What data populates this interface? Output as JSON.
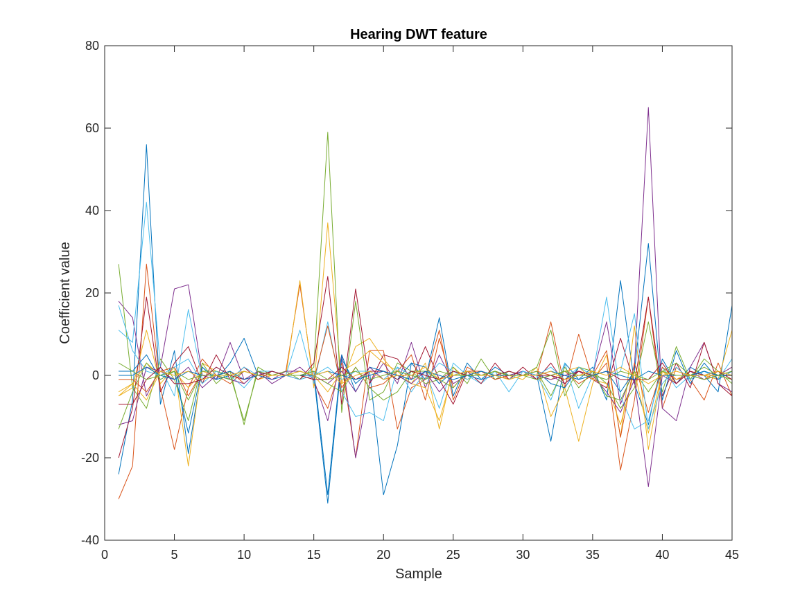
{
  "chart_data": {
    "type": "line",
    "title": "Hearing DWT feature",
    "xlabel": "Sample",
    "ylabel": "Coefficient value",
    "xlim": [
      0,
      45
    ],
    "ylim": [
      -40,
      80
    ],
    "xticks": [
      0,
      5,
      10,
      15,
      20,
      25,
      30,
      35,
      40,
      45
    ],
    "yticks": [
      -40,
      -20,
      0,
      20,
      40,
      60,
      80
    ],
    "xtick_labels": [
      "0",
      "5",
      "10",
      "15",
      "20",
      "25",
      "30",
      "35",
      "40",
      "45"
    ],
    "ytick_labels": [
      "-40",
      "-20",
      "0",
      "20",
      "40",
      "60",
      "80"
    ],
    "grid": false,
    "legend": "none",
    "x": [
      1,
      2,
      3,
      4,
      5,
      6,
      7,
      8,
      9,
      10,
      11,
      12,
      13,
      14,
      15,
      16,
      17,
      18,
      19,
      20,
      21,
      22,
      23,
      24,
      25,
      26,
      27,
      28,
      29,
      30,
      31,
      32,
      33,
      34,
      35,
      36,
      37,
      38,
      39,
      40,
      41,
      42,
      43,
      44,
      45
    ],
    "series": [
      {
        "color": "#0072BD",
        "values": [
          -24,
          -6,
          56,
          -7,
          6,
          -19,
          2,
          -1,
          3,
          9,
          0,
          1,
          0,
          1,
          0,
          -31,
          4,
          -2,
          1,
          -29,
          -17,
          3,
          -1,
          14,
          -5,
          3,
          -1,
          2,
          0,
          1,
          0,
          -16,
          3,
          -1,
          2,
          -6,
          23,
          -2,
          -12,
          4,
          -2,
          2,
          0,
          -4,
          17
        ]
      },
      {
        "color": "#D95319",
        "values": [
          -30,
          -22,
          27,
          -3,
          -18,
          -3,
          4,
          0,
          -2,
          1,
          0,
          0,
          1,
          22,
          -2,
          -8,
          3,
          -20,
          6,
          6,
          -13,
          -3,
          -1,
          11,
          -6,
          2,
          0,
          1,
          -1,
          1,
          0,
          13,
          -3,
          10,
          -1,
          3,
          -23,
          -6,
          19,
          -8,
          2,
          -1,
          -6,
          3,
          -5
        ]
      },
      {
        "color": "#EDB120",
        "values": [
          -5,
          -3,
          11,
          -2,
          2,
          -22,
          3,
          1,
          -1,
          2,
          -1,
          0,
          0,
          23,
          -3,
          37,
          -2,
          7,
          9,
          4,
          0,
          -2,
          3,
          -13,
          2,
          -1,
          1,
          0,
          0,
          -1,
          2,
          -10,
          -3,
          -16,
          -2,
          5,
          -15,
          12,
          -18,
          1,
          -2,
          1,
          0,
          -1,
          11
        ]
      },
      {
        "color": "#7E2F8E",
        "values": [
          18,
          14,
          -5,
          2,
          21,
          22,
          0,
          -1,
          8,
          -1,
          1,
          -2,
          0,
          2,
          -1,
          -11,
          5,
          -20,
          -2,
          3,
          -2,
          8,
          -3,
          5,
          -2,
          0,
          1,
          -1,
          0,
          1,
          -1,
          0,
          -2,
          1,
          0,
          13,
          -7,
          2,
          65,
          -8,
          -11,
          2,
          8,
          -2,
          -4
        ]
      },
      {
        "color": "#77AC30",
        "values": [
          27,
          -3,
          -8,
          4,
          -1,
          -11,
          3,
          -2,
          1,
          -12,
          2,
          0,
          1,
          -1,
          2,
          59,
          -9,
          18,
          -6,
          -4,
          3,
          1,
          -2,
          -1,
          2,
          -2,
          4,
          -1,
          1,
          0,
          2,
          11,
          -5,
          2,
          1,
          -2,
          -8,
          -3,
          13,
          -4,
          7,
          -1,
          4,
          1,
          -2
        ]
      },
      {
        "color": "#4DBEEE",
        "values": [
          11,
          8,
          42,
          2,
          -5,
          16,
          -1,
          2,
          0,
          -3,
          1,
          1,
          0,
          11,
          -2,
          13,
          -4,
          -10,
          -9,
          -11,
          2,
          -4,
          1,
          -8,
          3,
          0,
          -2,
          1,
          -4,
          1,
          0,
          -6,
          3,
          -8,
          0,
          19,
          -5,
          -13,
          -11,
          2,
          -3,
          0,
          1,
          -1,
          4
        ]
      },
      {
        "color": "#A2142F",
        "values": [
          -20,
          -8,
          19,
          -4,
          3,
          7,
          -2,
          5,
          -1,
          2,
          -1,
          1,
          0,
          -1,
          3,
          24,
          -7,
          21,
          -2,
          5,
          4,
          -1,
          7,
          -1,
          -7,
          1,
          -2,
          3,
          -1,
          2,
          -1,
          3,
          -2,
          1,
          -1,
          -3,
          9,
          -2,
          19,
          -5,
          3,
          -3,
          8,
          -2,
          -5
        ]
      },
      {
        "color": "#0072BD",
        "values": [
          1,
          1,
          5,
          -1,
          1,
          -14,
          2,
          -1,
          0,
          1,
          0,
          -1,
          0,
          0,
          1,
          -29,
          5,
          -4,
          2,
          1,
          -1,
          3,
          2,
          -2,
          1,
          0,
          -1,
          0,
          0,
          0,
          1,
          -2,
          -3,
          2,
          0,
          1,
          -4,
          1,
          32,
          -6,
          6,
          -2,
          3,
          -1,
          1
        ]
      },
      {
        "color": "#D95319",
        "values": [
          -1,
          -1,
          -4,
          1,
          2,
          -5,
          1,
          0,
          1,
          -2,
          1,
          0,
          0,
          0,
          -1,
          12,
          -3,
          2,
          -3,
          -2,
          1,
          5,
          -6,
          9,
          -3,
          1,
          1,
          -1,
          0,
          0,
          1,
          0,
          1,
          -2,
          0,
          6,
          -15,
          3,
          -9,
          2,
          -1,
          0,
          -1,
          1,
          -1
        ]
      },
      {
        "color": "#EDB120",
        "values": [
          -4,
          -2,
          3,
          0,
          1,
          -3,
          1,
          0,
          0,
          1,
          0,
          0,
          0,
          1,
          0,
          -4,
          1,
          3,
          6,
          3,
          1,
          -2,
          -3,
          -11,
          1,
          0,
          0,
          1,
          0,
          0,
          0,
          -1,
          1,
          2,
          -1,
          -2,
          -12,
          1,
          -14,
          1,
          -1,
          1,
          0,
          0,
          2
        ]
      },
      {
        "color": "#7E2F8E",
        "values": [
          -12,
          -11,
          2,
          1,
          -1,
          2,
          -3,
          0,
          -1,
          -2,
          1,
          -1,
          1,
          1,
          0,
          -2,
          1,
          -4,
          2,
          -1,
          0,
          -2,
          1,
          -4,
          0,
          1,
          0,
          0,
          0,
          0,
          0,
          -1,
          0,
          1,
          0,
          -4,
          -9,
          -1,
          -27,
          0,
          -2,
          1,
          -1,
          0,
          2
        ]
      },
      {
        "color": "#77AC30",
        "values": [
          -13,
          -4,
          3,
          -1,
          1,
          -6,
          1,
          1,
          0,
          -11,
          1,
          0,
          0,
          1,
          0,
          -2,
          -4,
          2,
          -3,
          -6,
          -4,
          1,
          1,
          -1,
          -3,
          1,
          0,
          1,
          0,
          0,
          1,
          -5,
          2,
          -3,
          1,
          -5,
          -6,
          1,
          -4,
          1,
          3,
          0,
          2,
          0,
          -1
        ]
      },
      {
        "color": "#4DBEEE",
        "values": [
          17,
          6,
          1,
          0,
          2,
          4,
          -2,
          1,
          -1,
          2,
          0,
          1,
          0,
          -1,
          0,
          2,
          -1,
          1,
          1,
          -1,
          2,
          0,
          -1,
          3,
          1,
          -1,
          1,
          0,
          -1,
          1,
          0,
          2,
          -1,
          2,
          0,
          -1,
          1,
          15,
          -13,
          -2,
          2,
          -1,
          1,
          0,
          1
        ]
      },
      {
        "color": "#A2142F",
        "values": [
          -7,
          -7,
          -1,
          2,
          -2,
          -2,
          -1,
          2,
          0,
          -1,
          0,
          1,
          0,
          0,
          -1,
          -1,
          2,
          -1,
          1,
          1,
          -1,
          1,
          0,
          -1,
          1,
          0,
          0,
          0,
          1,
          0,
          0,
          0,
          -1,
          1,
          0,
          1,
          -1,
          -1,
          -1,
          3,
          -2,
          1,
          0,
          1,
          -1
        ]
      },
      {
        "color": "#0072BD",
        "values": [
          0,
          0,
          2,
          0,
          -1,
          1,
          0,
          0,
          1,
          -1,
          0,
          0,
          0,
          0,
          0,
          1,
          0,
          -1,
          0,
          1,
          0,
          -1,
          1,
          0,
          -1,
          0,
          1,
          0,
          0,
          0,
          0,
          1,
          0,
          -1,
          0,
          1,
          0,
          -1,
          1,
          0,
          0,
          0,
          1,
          0,
          0
        ]
      },
      {
        "color": "#77AC30",
        "values": [
          3,
          1,
          -1,
          0,
          1,
          -1,
          0,
          0,
          -1,
          1,
          0,
          0,
          0,
          0,
          1,
          -1,
          0,
          1,
          -1,
          0,
          1,
          0,
          -1,
          1,
          0,
          0,
          0,
          1,
          0,
          0,
          -1,
          0,
          1,
          0,
          0,
          -1,
          1,
          0,
          -1,
          1,
          0,
          0,
          -1,
          0,
          1
        ]
      },
      {
        "color": "#EDB120",
        "values": [
          -5,
          -2,
          -6,
          1,
          0,
          1,
          -1,
          0,
          0,
          1,
          0,
          0,
          0,
          1,
          0,
          1,
          -2,
          0,
          1,
          -1,
          0,
          0,
          2,
          -1,
          0,
          1,
          0,
          0,
          -1,
          0,
          0,
          1,
          -1,
          0,
          1,
          0,
          2,
          0,
          -2,
          0,
          1,
          0,
          0,
          1,
          0
        ]
      }
    ]
  }
}
